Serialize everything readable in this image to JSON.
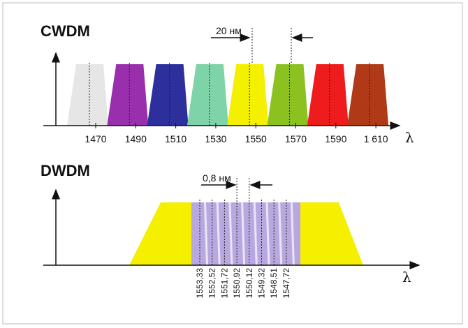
{
  "cwdm": {
    "title": "CWDM",
    "spacing_label": "20 нм",
    "axis_label": "λ",
    "channels": [
      {
        "label": "1470",
        "color": "#e6e6e6"
      },
      {
        "label": "1490",
        "color": "#9a2fae"
      },
      {
        "label": "1510",
        "color": "#2c2f9c"
      },
      {
        "label": "1530",
        "color": "#7fd3a8"
      },
      {
        "label": "1550",
        "color": "#f5ef00"
      },
      {
        "label": "1570",
        "color": "#8cc21f"
      },
      {
        "label": "1590",
        "color": "#ee1c1c"
      },
      {
        "label": "1 610",
        "color": "#b03a17"
      }
    ]
  },
  "dwdm": {
    "title": "DWDM",
    "spacing_label": "0,8 нм",
    "axis_label": "λ",
    "band_color": "#f5ef00",
    "channel_color": "#b9a8e0",
    "channels": [
      "1553,33",
      "1552,52",
      "1551,72",
      "1550,92",
      "1550,12",
      "1549,32",
      "1548,51",
      "1547,72"
    ]
  }
}
